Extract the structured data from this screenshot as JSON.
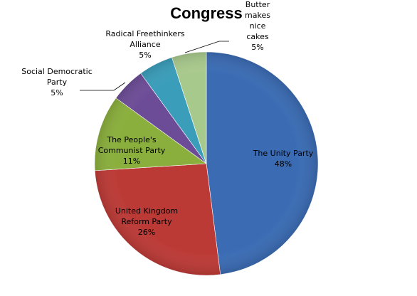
{
  "chart_data": {
    "type": "pie",
    "title": "Congress",
    "start_angle_deg": 0,
    "direction": "clockwise",
    "slices": [
      {
        "label_lines": [
          "The Unity  Party"
        ],
        "value": 48,
        "pct_text": "48%",
        "color": "#3A6BB3"
      },
      {
        "label_lines": [
          "United Kingdom",
          "Reform Party"
        ],
        "value": 26,
        "pct_text": "26%",
        "color": "#BC3A36"
      },
      {
        "label_lines": [
          "The People's",
          "Communist Party"
        ],
        "value": 11,
        "pct_text": "11%",
        "color": "#8AAF3C"
      },
      {
        "label_lines": [
          "Social Democratic",
          "Party"
        ],
        "value": 5,
        "pct_text": "5%",
        "color": "#6D4C97"
      },
      {
        "label_lines": [
          "Radical Freethinkers",
          "Alliance"
        ],
        "value": 5,
        "pct_text": "5%",
        "color": "#3A9DBA"
      },
      {
        "label_lines": [
          "Butter",
          "makes",
          "nice",
          "cakes"
        ],
        "value": 5,
        "pct_text": "5%",
        "color": "#A8C98C"
      }
    ]
  }
}
